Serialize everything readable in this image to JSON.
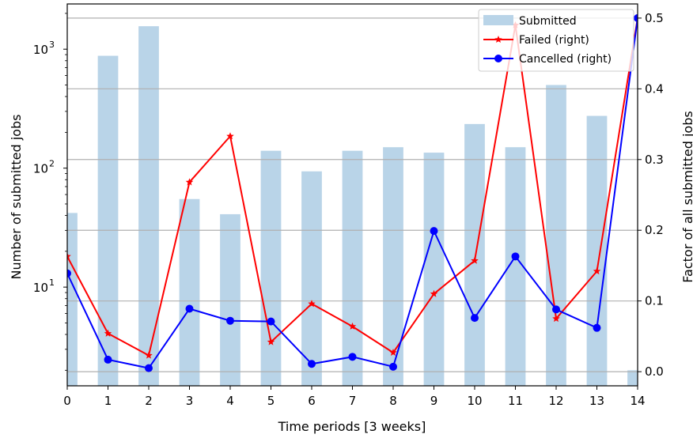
{
  "chart_data": {
    "type": "bar",
    "xlabel": "Time periods [3 weeks]",
    "ylabel_left": "Number of submitted jobs",
    "ylabel_right": "Factor of all submitted jobs",
    "y_left_scale": "log",
    "y_left_range": [
      1.48,
      2400
    ],
    "y_right_range": [
      -0.02,
      0.52
    ],
    "x_range": [
      0,
      14
    ],
    "grid": "horizontal lines on right axis ticks",
    "legend_position": "top-right",
    "categories": [
      "0",
      "1",
      "2",
      "3",
      "4",
      "5",
      "6",
      "7",
      "8",
      "9",
      "10",
      "11",
      "12",
      "13",
      "14"
    ],
    "x_tick_labels": [
      "0",
      "1",
      "2",
      "3",
      "4",
      "5",
      "6",
      "7",
      "8",
      "9",
      "10",
      "11",
      "12",
      "13",
      "14"
    ],
    "y_left_tick_labels": [
      {
        "base": "10",
        "exp": "1",
        "value": 10
      },
      {
        "base": "10",
        "exp": "2",
        "value": 100
      },
      {
        "base": "10",
        "exp": "3",
        "value": 1000
      }
    ],
    "y_right_tick_labels": [
      "0.0",
      "0.1",
      "0.2",
      "0.3",
      "0.4",
      "0.5"
    ],
    "series": [
      {
        "name": "Submitted",
        "kind": "bar",
        "axis": "left",
        "color": "#b9d4e8",
        "values": [
          42,
          880,
          1560,
          55,
          41,
          140,
          94,
          140,
          150,
          135,
          235,
          150,
          500,
          275,
          2
        ]
      },
      {
        "name": "Failed (right)",
        "kind": "line",
        "axis": "right",
        "color": "#ff0000",
        "marker": "star",
        "values": [
          0.163,
          0.054,
          0.023,
          0.268,
          0.333,
          0.042,
          0.096,
          0.064,
          0.027,
          0.11,
          0.157,
          0.49,
          0.075,
          0.142,
          0.5
        ]
      },
      {
        "name": "Cancelled (right)",
        "kind": "line",
        "axis": "right",
        "color": "#0000ff",
        "marker": "circle",
        "values": [
          0.139,
          0.017,
          0.005,
          0.089,
          0.072,
          0.071,
          0.011,
          0.021,
          0.007,
          0.199,
          0.076,
          0.163,
          0.088,
          0.062,
          0.5
        ]
      }
    ]
  }
}
